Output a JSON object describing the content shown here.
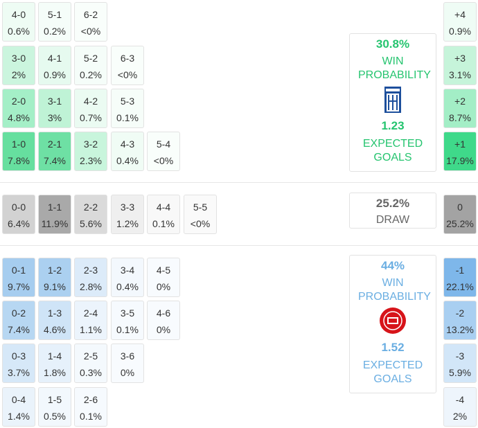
{
  "home_grid": [
    [
      {
        "score": "4-0",
        "prob": "0.6%",
        "color": "#eefcf4"
      },
      {
        "score": "5-1",
        "prob": "0.2%",
        "color": "#f5fdf9"
      },
      {
        "score": "6-2",
        "prob": "<0%",
        "color": "#f9fefb"
      }
    ],
    [
      {
        "score": "3-0",
        "prob": "2%",
        "color": "#cbf5de"
      },
      {
        "score": "4-1",
        "prob": "0.9%",
        "color": "#e6faef"
      },
      {
        "score": "5-2",
        "prob": "0.2%",
        "color": "#f5fdf9"
      },
      {
        "score": "6-3",
        "prob": "<0%",
        "color": "#f9fefb"
      }
    ],
    [
      {
        "score": "2-0",
        "prob": "4.8%",
        "color": "#a4efc7"
      },
      {
        "score": "3-1",
        "prob": "3%",
        "color": "#bff3d6"
      },
      {
        "score": "4-2",
        "prob": "0.7%",
        "color": "#ebfbf2"
      },
      {
        "score": "5-3",
        "prob": "0.1%",
        "color": "#f6fdf9"
      }
    ],
    [
      {
        "score": "1-0",
        "prob": "7.8%",
        "color": "#66df9f"
      },
      {
        "score": "2-1",
        "prob": "7.4%",
        "color": "#6ee0a4"
      },
      {
        "score": "3-2",
        "prob": "2.3%",
        "color": "#c8f5dc"
      },
      {
        "score": "4-3",
        "prob": "0.4%",
        "color": "#f0fcf5"
      },
      {
        "score": "5-4",
        "prob": "<0%",
        "color": "#f9fefb"
      }
    ]
  ],
  "draw_row": [
    {
      "score": "0-0",
      "prob": "6.4%",
      "color": "#d2d2d2"
    },
    {
      "score": "1-1",
      "prob": "11.9%",
      "color": "#a9a9a9"
    },
    {
      "score": "2-2",
      "prob": "5.6%",
      "color": "#dadada"
    },
    {
      "score": "3-3",
      "prob": "1.2%",
      "color": "#efefef"
    },
    {
      "score": "4-4",
      "prob": "0.1%",
      "color": "#f8f8f8"
    },
    {
      "score": "5-5",
      "prob": "<0%",
      "color": "#fafafa"
    }
  ],
  "away_grid": [
    [
      {
        "score": "0-1",
        "prob": "9.7%",
        "color": "#a6cdef"
      },
      {
        "score": "1-2",
        "prob": "9.1%",
        "color": "#abd0f0"
      },
      {
        "score": "2-3",
        "prob": "2.8%",
        "color": "#dcebf9"
      },
      {
        "score": "3-4",
        "prob": "0.4%",
        "color": "#f3f8fd"
      },
      {
        "score": "4-5",
        "prob": "0%",
        "color": "#f8fbfe"
      }
    ],
    [
      {
        "score": "0-2",
        "prob": "7.4%",
        "color": "#b7d7f2"
      },
      {
        "score": "1-3",
        "prob": "4.6%",
        "color": "#cfe4f7"
      },
      {
        "score": "2-4",
        "prob": "1.1%",
        "color": "#ecf4fc"
      },
      {
        "score": "3-5",
        "prob": "0.1%",
        "color": "#f6fafe"
      },
      {
        "score": "4-6",
        "prob": "0%",
        "color": "#f8fbfe"
      }
    ],
    [
      {
        "score": "0-3",
        "prob": "3.7%",
        "color": "#d6e8f8"
      },
      {
        "score": "1-4",
        "prob": "1.8%",
        "color": "#e6f1fb"
      },
      {
        "score": "2-5",
        "prob": "0.3%",
        "color": "#f4f9fd"
      },
      {
        "score": "3-6",
        "prob": "0%",
        "color": "#f8fbfe"
      }
    ],
    [
      {
        "score": "0-4",
        "prob": "1.4%",
        "color": "#eaf3fb"
      },
      {
        "score": "1-5",
        "prob": "0.5%",
        "color": "#f2f8fd"
      },
      {
        "score": "2-6",
        "prob": "0.1%",
        "color": "#f6fafe"
      }
    ]
  ],
  "margins": [
    {
      "label": "+4",
      "prob": "0.9%",
      "color": "#effcf5"
    },
    {
      "label": "+3",
      "prob": "3.1%",
      "color": "#c6f4da"
    },
    {
      "label": "+2",
      "prob": "8.7%",
      "color": "#a3eec6"
    },
    {
      "label": "+1",
      "prob": "17.9%",
      "color": "#3fd98a"
    },
    {
      "label": "0",
      "prob": "25.2%",
      "color": "#a3a3a3"
    },
    {
      "label": "-1",
      "prob": "22.1%",
      "color": "#7eb7ea"
    },
    {
      "label": "-2",
      "prob": "13.2%",
      "color": "#a9cff1"
    },
    {
      "label": "-3",
      "prob": "5.9%",
      "color": "#d2e6f8"
    },
    {
      "label": "-4",
      "prob": "2%",
      "color": "#eef5fc"
    }
  ],
  "home_summary": {
    "win_probability": "30.8%",
    "win_label": "WIN PROBABILITY",
    "expected_goals": "1.23",
    "xg_label": "EXPECTED GOALS",
    "color": "#25c46f"
  },
  "draw_summary": {
    "probability": "25.2%",
    "label": "DRAW",
    "color": "#666666"
  },
  "away_summary": {
    "win_probability": "44%",
    "win_label": "WIN PROBABILITY",
    "expected_goals": "1.52",
    "xg_label": "EXPECTED GOALS",
    "color": "#6aaee2"
  }
}
